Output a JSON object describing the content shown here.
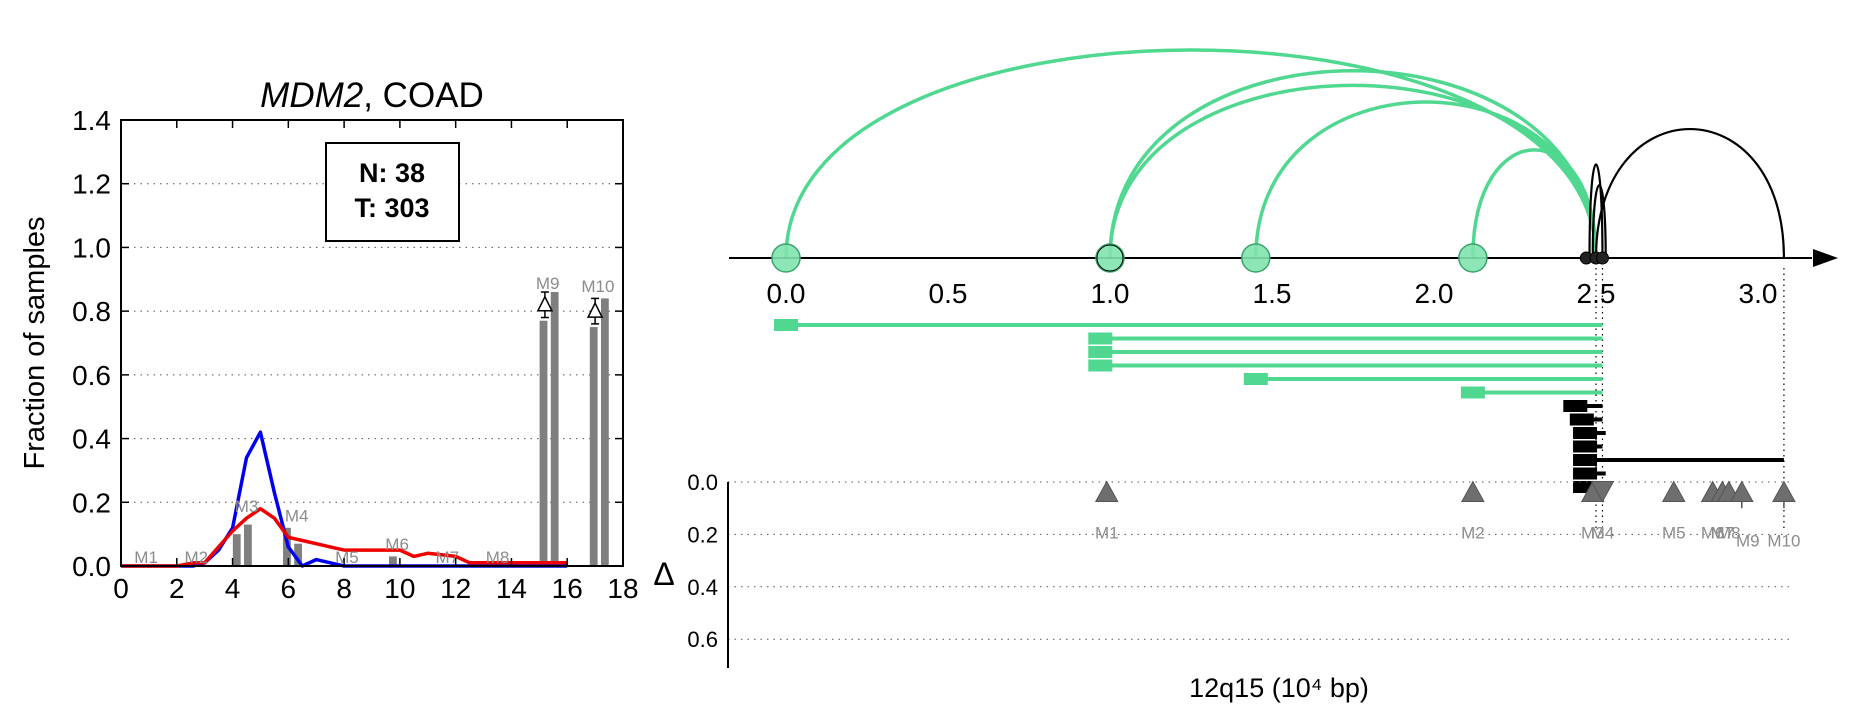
{
  "chart_data": [
    {
      "type": "bar",
      "title_italic": "MDM2",
      "title_rest": ", COAD",
      "xlabel": "",
      "ylabel": "Fraction of samples",
      "xlim": [
        0,
        18
      ],
      "ylim": [
        0,
        1.4
      ],
      "xticks": [
        "0",
        "2",
        "4",
        "6",
        "8",
        "10",
        "12",
        "14",
        "16",
        "18"
      ],
      "yticks": [
        "0.0",
        "0.2",
        "0.4",
        "0.6",
        "0.8",
        "1.0",
        "1.2",
        "1.4"
      ],
      "grid": "horizontal dotted",
      "annotation_lines": [
        "N: 38",
        "T: 303"
      ],
      "colors": {
        "normal": "#0000ee",
        "tumor": "#ee0000",
        "bars": "#7f7f7f",
        "labels": "#8c8c8c"
      },
      "marker_labels": [
        {
          "label": "M1",
          "x": 0.9,
          "y": 0.01
        },
        {
          "label": "M2",
          "x": 2.7,
          "y": 0.01
        },
        {
          "label": "M3",
          "x": 4.5,
          "y": 0.17
        },
        {
          "label": "M4",
          "x": 6.3,
          "y": 0.14
        },
        {
          "label": "M5",
          "x": 8.1,
          "y": 0.01
        },
        {
          "label": "M6",
          "x": 9.9,
          "y": 0.05
        },
        {
          "label": "M7",
          "x": 11.7,
          "y": 0.01
        },
        {
          "label": "M8",
          "x": 13.5,
          "y": 0.01
        },
        {
          "label": "M9",
          "x": 15.3,
          "y": 0.87
        },
        {
          "label": "M10",
          "x": 17.1,
          "y": 0.86
        }
      ],
      "bars": [
        {
          "x": 4.15,
          "value": 0.1
        },
        {
          "x": 4.55,
          "value": 0.13
        },
        {
          "x": 5.95,
          "value": 0.12
        },
        {
          "x": 6.35,
          "value": 0.07
        },
        {
          "x": 9.75,
          "value": 0.03
        },
        {
          "x": 15.15,
          "value": 0.77
        },
        {
          "x": 15.55,
          "value": 0.86
        },
        {
          "x": 16.95,
          "value": 0.75
        },
        {
          "x": 17.35,
          "value": 0.84
        }
      ],
      "deltas": [
        {
          "x": 15.2,
          "value": 0.82,
          "err": 0.04
        },
        {
          "x": 17.0,
          "value": 0.8,
          "err": 0.04
        }
      ],
      "series": [
        {
          "values_x": [
            0,
            1,
            2,
            2.6,
            3,
            3.5,
            4,
            4.5,
            5,
            5.5,
            6,
            6.5,
            7,
            7.5,
            8,
            9,
            10,
            11,
            12,
            13,
            14,
            15,
            16
          ],
          "values_y": [
            0,
            0,
            0,
            0,
            0.01,
            0.05,
            0.12,
            0.34,
            0.42,
            0.23,
            0.06,
            0,
            0.02,
            0.01,
            0,
            0,
            0,
            0,
            0,
            0,
            0,
            0,
            0
          ]
        },
        {
          "values_x": [
            0,
            1,
            2,
            2.6,
            3,
            3.5,
            4,
            4.5,
            5,
            5.5,
            6,
            6.5,
            7,
            7.5,
            8,
            8.5,
            9,
            10,
            10.5,
            11,
            12,
            12.5,
            13,
            14,
            15,
            16
          ],
          "values_y": [
            0,
            0,
            0,
            0.01,
            0.01,
            0.06,
            0.11,
            0.15,
            0.18,
            0.15,
            0.09,
            0.08,
            0.07,
            0.06,
            0.05,
            0.05,
            0.05,
            0.05,
            0.03,
            0.04,
            0.03,
            0.01,
            0.01,
            0.01,
            0.01,
            0.01
          ]
        }
      ]
    },
    {
      "type": "scatter",
      "xlabel": "12q15 (10⁴ bp)",
      "xticks": [
        "0.0",
        "0.5",
        "1.0",
        "1.5",
        "2.0",
        "2.5",
        "3.0"
      ],
      "ylabel": "Δ",
      "yticks": [
        "0.0",
        "0.2",
        "0.4",
        "0.6"
      ],
      "ylim": [
        0,
        0.7
      ],
      "colors": {
        "green": "#50d890",
        "black": "#000000",
        "triangle": "#6e6e6e",
        "label": "#8c8c8c"
      },
      "loops": [
        {
          "anchor": 0.0,
          "end": 2.5,
          "color": "green",
          "height": 1.0
        },
        {
          "anchor": 1.0,
          "end": 2.5,
          "color": "green",
          "height": 0.9
        },
        {
          "anchor": 1.0,
          "end": 2.5,
          "color": "green",
          "height": 0.83
        },
        {
          "anchor": 1.45,
          "end": 2.5,
          "color": "green",
          "height": 0.75
        },
        {
          "anchor": 2.12,
          "end": 2.5,
          "color": "green",
          "height": 0.52
        },
        {
          "anchor": 2.5,
          "end": 3.08,
          "color": "black",
          "height": 0.62
        },
        {
          "anchor": 2.48,
          "end": 2.52,
          "color": "black",
          "height": 0.45
        },
        {
          "anchor": 2.49,
          "end": 2.53,
          "color": "black",
          "height": 0.35
        }
      ],
      "anchor_circles": [
        0.0,
        1.0,
        1.45,
        2.12
      ],
      "spans": [
        {
          "start": 0.0,
          "end": 2.52,
          "color": "green"
        },
        {
          "start": 0.97,
          "end": 2.52,
          "color": "green"
        },
        {
          "start": 0.97,
          "end": 2.52,
          "color": "green"
        },
        {
          "start": 0.97,
          "end": 2.52,
          "color": "green"
        },
        {
          "start": 1.45,
          "end": 2.52,
          "color": "green"
        },
        {
          "start": 2.12,
          "end": 2.52,
          "color": "green"
        },
        {
          "start": 2.43,
          "end": 2.52,
          "color": "black"
        },
        {
          "start": 2.45,
          "end": 2.52,
          "color": "black"
        },
        {
          "start": 2.46,
          "end": 2.53,
          "color": "black"
        },
        {
          "start": 2.46,
          "end": 2.52,
          "color": "black"
        },
        {
          "start": 2.46,
          "end": 3.08,
          "color": "black"
        },
        {
          "start": 2.46,
          "end": 2.53,
          "color": "black"
        },
        {
          "start": 2.46,
          "end": 2.52,
          "color": "black"
        }
      ],
      "markers": [
        {
          "label": "M1",
          "pos": 0.99,
          "delta": 0.04,
          "dir": "up"
        },
        {
          "label": "M2",
          "pos": 2.12,
          "delta": 0.04,
          "dir": "up"
        },
        {
          "label": "M3",
          "pos": 2.49,
          "delta": 0.04,
          "dir": "up"
        },
        {
          "label": "M4",
          "pos": 2.52,
          "delta": 0.04,
          "dir": "down"
        },
        {
          "label": "M5",
          "pos": 2.74,
          "delta": 0.04,
          "dir": "up"
        },
        {
          "label": "M6",
          "pos": 2.86,
          "delta": 0.04,
          "dir": "up"
        },
        {
          "label": "M7",
          "pos": 2.89,
          "delta": 0.04,
          "dir": "up"
        },
        {
          "label": "M8",
          "pos": 2.91,
          "delta": 0.04,
          "dir": "up"
        },
        {
          "label": "M9",
          "pos": 2.95,
          "delta": 0.04,
          "dir": "up"
        },
        {
          "label": "M10",
          "pos": 3.08,
          "delta": 0.04,
          "dir": "up"
        }
      ]
    }
  ]
}
